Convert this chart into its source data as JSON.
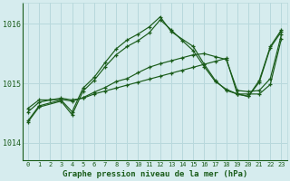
{
  "xlabel": "Graphe pression niveau de la mer (hPa)",
  "background_color": "#d6ecee",
  "grid_color": "#b8d8dc",
  "line_color": "#1a5c1a",
  "xlim": [
    -0.5,
    23.5
  ],
  "ylim": [
    1013.7,
    1016.35
  ],
  "yticks": [
    1014,
    1015,
    1016
  ],
  "xticks": [
    0,
    1,
    2,
    3,
    4,
    5,
    6,
    7,
    8,
    9,
    10,
    11,
    12,
    13,
    14,
    15,
    16,
    17,
    18,
    19,
    20,
    21,
    22,
    23
  ],
  "lines": [
    {
      "x": [
        0,
        1,
        2,
        3,
        4,
        5,
        6,
        7,
        8,
        9,
        10,
        11,
        12,
        13,
        14,
        15,
        16,
        17,
        18,
        19,
        20,
        21,
        22,
        23
      ],
      "y": [
        1014.58,
        1014.72,
        1014.72,
        1014.75,
        1014.72,
        1014.75,
        1014.82,
        1014.87,
        1014.92,
        1014.97,
        1015.02,
        1015.07,
        1015.12,
        1015.17,
        1015.22,
        1015.27,
        1015.32,
        1015.37,
        1015.42,
        1014.82,
        1014.82,
        1014.82,
        1014.98,
        1015.75
      ]
    },
    {
      "x": [
        0,
        1,
        2,
        3,
        4,
        5,
        6,
        7,
        8,
        9,
        10,
        11,
        12,
        13,
        14,
        15,
        16,
        17,
        18,
        19,
        20,
        21,
        22,
        23
      ],
      "y": [
        1014.52,
        1014.68,
        1014.72,
        1014.73,
        1014.7,
        1014.76,
        1014.85,
        1014.93,
        1015.03,
        1015.08,
        1015.18,
        1015.27,
        1015.33,
        1015.38,
        1015.43,
        1015.48,
        1015.5,
        1015.45,
        1015.4,
        1014.88,
        1014.86,
        1014.88,
        1015.08,
        1015.82
      ]
    },
    {
      "x": [
        0,
        1,
        3,
        4,
        5,
        6,
        7,
        8,
        9,
        10,
        11,
        12,
        13,
        15,
        16,
        17,
        18,
        19,
        20,
        21,
        22,
        23
      ],
      "y": [
        1014.37,
        1014.62,
        1014.72,
        1014.52,
        1014.92,
        1015.1,
        1015.35,
        1015.58,
        1015.73,
        1015.83,
        1015.95,
        1016.12,
        1015.87,
        1015.62,
        1015.32,
        1015.05,
        1014.88,
        1014.82,
        1014.78,
        1015.05,
        1015.62,
        1015.9
      ]
    },
    {
      "x": [
        0,
        1,
        3,
        4,
        5,
        6,
        7,
        8,
        9,
        10,
        11,
        12,
        13,
        14,
        15,
        16,
        17,
        18,
        19,
        20,
        21,
        22,
        23
      ],
      "y": [
        1014.35,
        1014.6,
        1014.7,
        1014.47,
        1014.87,
        1015.05,
        1015.28,
        1015.48,
        1015.62,
        1015.72,
        1015.85,
        1016.07,
        1015.9,
        1015.72,
        1015.55,
        1015.28,
        1015.03,
        1014.9,
        1014.82,
        1014.78,
        1015.02,
        1015.6,
        1015.87
      ]
    }
  ]
}
